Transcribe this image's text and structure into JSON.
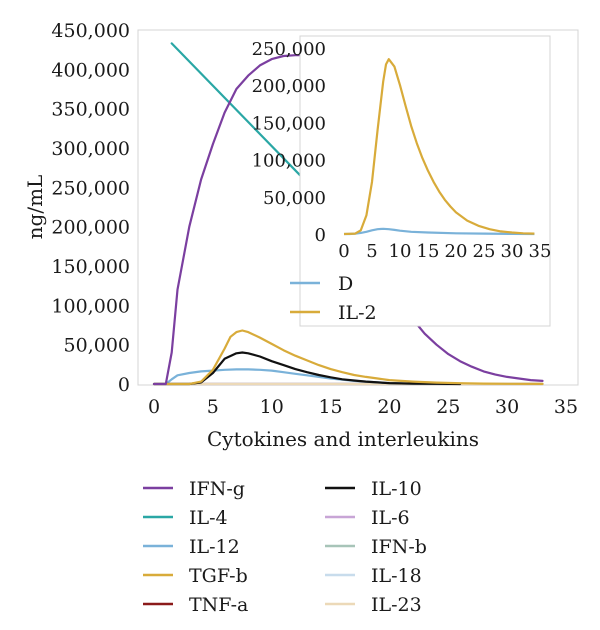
{
  "chart_data": [
    {
      "type": "line",
      "xlabel": "Cytokines and interleukins",
      "ylabel": "ng/mL",
      "xlim": [
        0,
        35
      ],
      "ylim": [
        0,
        450000
      ],
      "x_ticks": [
        "0",
        "5",
        "10",
        "15",
        "20",
        "25",
        "30",
        "35"
      ],
      "y_ticks": [
        "0",
        "50,000",
        "100,000",
        "150,000",
        "200,000",
        "250,000",
        "300,000",
        "350,000",
        "400,000",
        "450,000"
      ],
      "grid": false,
      "legend_position": "bottom",
      "series": [
        {
          "name": "IFN-g",
          "color": "#7b3fa0",
          "x": [
            0,
            1,
            1.5,
            2,
            3,
            4,
            5,
            6,
            7,
            8,
            9,
            10,
            11,
            12,
            13,
            14,
            15,
            16,
            17,
            18,
            19,
            20,
            21,
            22,
            23,
            24,
            25,
            26,
            27,
            28,
            29,
            30,
            31,
            32,
            33
          ],
          "y": [
            0,
            0,
            40000,
            120000,
            200000,
            260000,
            305000,
            345000,
            375000,
            392000,
            405000,
            413000,
            417000,
            418000,
            418000,
            417000,
            412000,
            370000,
            300000,
            230000,
            175000,
            135000,
            105000,
            82000,
            64000,
            50000,
            38000,
            29000,
            22000,
            16000,
            12000,
            9000,
            7000,
            5000,
            4000
          ]
        },
        {
          "name": "IL-4",
          "color": "#2aa7a5",
          "x": [
            1.5,
            12.5
          ],
          "y": [
            433000,
            264000
          ]
        },
        {
          "name": "IL-12",
          "color": "#7ab2d9",
          "x": [
            0,
            1,
            1.5,
            2,
            3,
            4,
            5,
            6,
            7,
            8,
            9,
            10,
            11,
            12,
            13,
            14,
            15,
            16,
            17,
            18,
            19,
            20,
            22,
            25
          ],
          "y": [
            0,
            0,
            6000,
            11000,
            14000,
            16000,
            17000,
            18000,
            18500,
            18500,
            18000,
            17000,
            15000,
            13000,
            11000,
            9000,
            7000,
            5500,
            4000,
            3000,
            2000,
            1000,
            500,
            0
          ]
        },
        {
          "name": "TGF-b",
          "color": "#d8ab3a",
          "x": [
            0,
            3,
            4,
            5,
            6,
            6.5,
            7,
            7.5,
            8,
            9,
            10,
            11,
            12,
            13,
            14,
            15,
            16,
            17,
            18,
            19,
            20,
            22,
            24,
            26,
            28,
            30,
            33
          ],
          "y": [
            0,
            0,
            3000,
            18000,
            45000,
            60000,
            66000,
            68000,
            66000,
            59000,
            51000,
            43000,
            36000,
            30000,
            24000,
            19000,
            15000,
            11500,
            9000,
            7000,
            5000,
            3000,
            1800,
            1000,
            500,
            300,
            100
          ]
        },
        {
          "name": "TNF-a",
          "color": "#8b1a1a",
          "x": [
            0,
            33
          ],
          "y": [
            0,
            0
          ]
        },
        {
          "name": "IL-10",
          "color": "#111111",
          "x": [
            0,
            3,
            4,
            5,
            6,
            7,
            7.5,
            8,
            9,
            10,
            11,
            12,
            13,
            14,
            15,
            16,
            17,
            18,
            19,
            20,
            21,
            22,
            24,
            26
          ],
          "y": [
            0,
            0,
            2000,
            14000,
            32000,
            39000,
            40000,
            39000,
            35000,
            29000,
            24000,
            19000,
            15000,
            11500,
            8500,
            6000,
            4500,
            3000,
            2000,
            1200,
            800,
            500,
            200,
            0
          ]
        },
        {
          "name": "IL-6",
          "color": "#c8a5d6",
          "x": [
            0,
            33
          ],
          "y": [
            0,
            0
          ]
        },
        {
          "name": "IFN-b",
          "color": "#a7c4b8",
          "x": [
            0,
            33
          ],
          "y": [
            0,
            0
          ]
        },
        {
          "name": "IL-18",
          "color": "#c8dcec",
          "x": [
            0,
            33
          ],
          "y": [
            0,
            0
          ]
        },
        {
          "name": "IL-23",
          "color": "#ecd9b8",
          "x": [
            0,
            33
          ],
          "y": [
            0,
            0
          ]
        }
      ]
    },
    {
      "type": "line",
      "xlim": [
        0,
        35
      ],
      "ylim": [
        0,
        250000
      ],
      "x_ticks": [
        "0",
        "5",
        "10",
        "15",
        "20",
        "25",
        "30",
        "35"
      ],
      "y_ticks": [
        "0",
        "50,000",
        "100,000",
        "150,000",
        "200,000",
        "250,000"
      ],
      "legend_position": "below",
      "series": [
        {
          "name": "D",
          "color": "#7ab2d9",
          "x": [
            0,
            1,
            2,
            3,
            4,
            5,
            6,
            7,
            8,
            9,
            10,
            12,
            15,
            20,
            25,
            30,
            34
          ],
          "y": [
            0,
            0,
            500,
            1500,
            3000,
            5000,
            6500,
            7000,
            6500,
            5500,
            4500,
            3000,
            2000,
            1000,
            500,
            200,
            0
          ]
        },
        {
          "name": "IL-2",
          "color": "#d8ab3a",
          "x": [
            0,
            2,
            3,
            4,
            5,
            6,
            7,
            7.5,
            8,
            9,
            10,
            11,
            12,
            13,
            14,
            15,
            16,
            17,
            18,
            19,
            20,
            22,
            24,
            26,
            28,
            30,
            32,
            34
          ],
          "y": [
            0,
            500,
            5000,
            25000,
            70000,
            140000,
            205000,
            228000,
            235000,
            225000,
            200000,
            172000,
            145000,
            122000,
            102000,
            85000,
            70000,
            57000,
            46000,
            37000,
            29000,
            18000,
            11000,
            6500,
            3500,
            2000,
            1000,
            500
          ]
        }
      ]
    }
  ]
}
